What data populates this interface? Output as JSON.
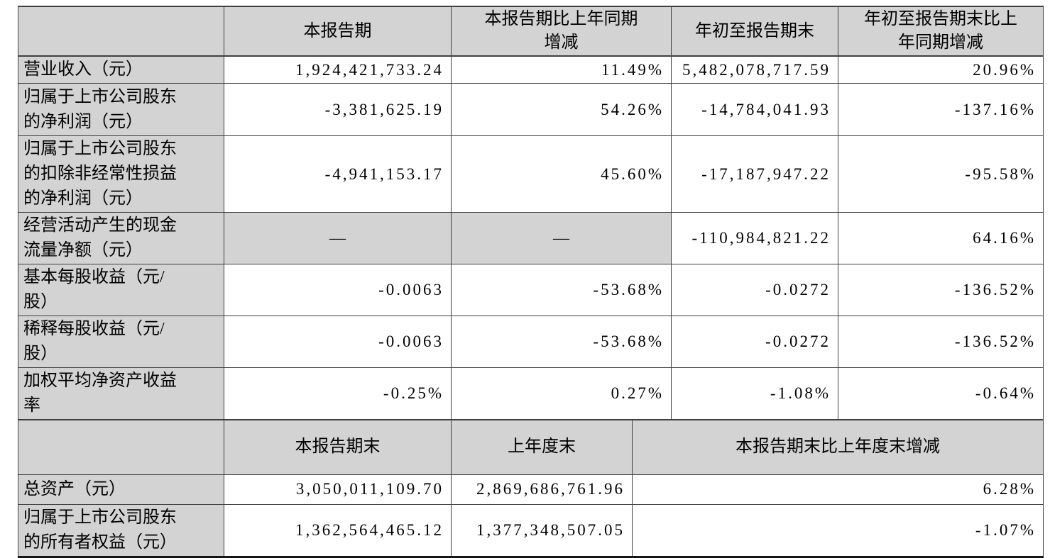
{
  "colors": {
    "header_fill": "#d3d3d3",
    "label_fill": "#d3d3d3",
    "cell_fill": "#ffffff",
    "border": "#3f3f3f",
    "bottom_border": "#161616",
    "text": "#000000"
  },
  "sections": [
    {
      "name": "period-metrics",
      "header_cells": [
        {
          "text": ""
        },
        {
          "text": "本报告期"
        },
        {
          "text": "本报告期比上年同期\n增减"
        },
        {
          "text": "年初至报告期末"
        },
        {
          "text": "年初至报告期末比上\n年同期增减"
        }
      ],
      "rows": [
        {
          "label": "营业收入（元）",
          "cells": [
            {
              "text": "1,924,421,733.24"
            },
            {
              "text": "11.49%"
            },
            {
              "text": "5,482,078,717.59"
            },
            {
              "text": "20.96%"
            }
          ]
        },
        {
          "label": "归属于上市公司股东\n的净利润（元）",
          "cells": [
            {
              "text": "-3,381,625.19"
            },
            {
              "text": "54.26%"
            },
            {
              "text": "-14,784,041.93"
            },
            {
              "text": "-137.16%"
            }
          ]
        },
        {
          "label": "归属于上市公司股东\n的扣除非经常性损益\n的净利润（元）",
          "cells": [
            {
              "text": "-4,941,153.17"
            },
            {
              "text": "45.60%"
            },
            {
              "text": "-17,187,947.22"
            },
            {
              "text": "-95.58%"
            }
          ]
        },
        {
          "label": "经营活动产生的现金\n流量净额（元）",
          "cells": [
            {
              "text": "—",
              "align": "center",
              "shaded": true
            },
            {
              "text": "—",
              "align": "center",
              "shaded": true
            },
            {
              "text": "-110,984,821.22"
            },
            {
              "text": "64.16%"
            }
          ]
        },
        {
          "label": "基本每股收益（元/\n股）",
          "cells": [
            {
              "text": "-0.0063"
            },
            {
              "text": "-53.68%"
            },
            {
              "text": "-0.0272"
            },
            {
              "text": "-136.52%"
            }
          ]
        },
        {
          "label": "稀释每股收益（元/\n股）",
          "cells": [
            {
              "text": "-0.0063"
            },
            {
              "text": "-53.68%"
            },
            {
              "text": "-0.0272"
            },
            {
              "text": "-136.52%"
            }
          ]
        },
        {
          "label": "加权平均净资产收益\n率",
          "cells": [
            {
              "text": "-0.25%"
            },
            {
              "text": "0.27%"
            },
            {
              "text": "-1.08%"
            },
            {
              "text": "-0.64%"
            }
          ]
        }
      ]
    },
    {
      "name": "period-end-metrics",
      "header_cells": [
        {
          "text": ""
        },
        {
          "text": "本报告期末"
        },
        {
          "text": "上年度末"
        },
        {
          "text": "本报告期末比上年度末增减"
        }
      ],
      "rows": [
        {
          "label": "总资产（元）",
          "cells": [
            {
              "text": "3,050,011,109.70"
            },
            {
              "text": "2,869,686,761.96"
            },
            {
              "text": "6.28%"
            }
          ]
        },
        {
          "label": "归属于上市公司股东\n的所有者权益（元）",
          "cells": [
            {
              "text": "1,362,564,465.12"
            },
            {
              "text": "1,377,348,507.05"
            },
            {
              "text": "-1.07%"
            }
          ]
        }
      ]
    }
  ]
}
